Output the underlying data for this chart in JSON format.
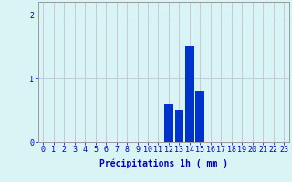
{
  "hours": [
    0,
    1,
    2,
    3,
    4,
    5,
    6,
    7,
    8,
    9,
    10,
    11,
    12,
    13,
    14,
    15,
    16,
    17,
    18,
    19,
    20,
    21,
    22,
    23
  ],
  "values": [
    0,
    0,
    0,
    0,
    0,
    0,
    0,
    0,
    0,
    0,
    0,
    0,
    0.6,
    0.5,
    1.5,
    0.8,
    0,
    0,
    0,
    0,
    0,
    0,
    0,
    0
  ],
  "bar_color": "#0033cc",
  "background_color": "#d8f4f4",
  "grid_color": "#c8c8d8",
  "text_color": "#0000bb",
  "xlabel": "Précipitations 1h ( mm )",
  "ylim": [
    0,
    2.2
  ],
  "yticks": [
    0,
    1,
    2
  ],
  "xlim": [
    -0.5,
    23.5
  ],
  "xlabel_fontsize": 7,
  "tick_fontsize": 6,
  "bar_width": 0.85
}
